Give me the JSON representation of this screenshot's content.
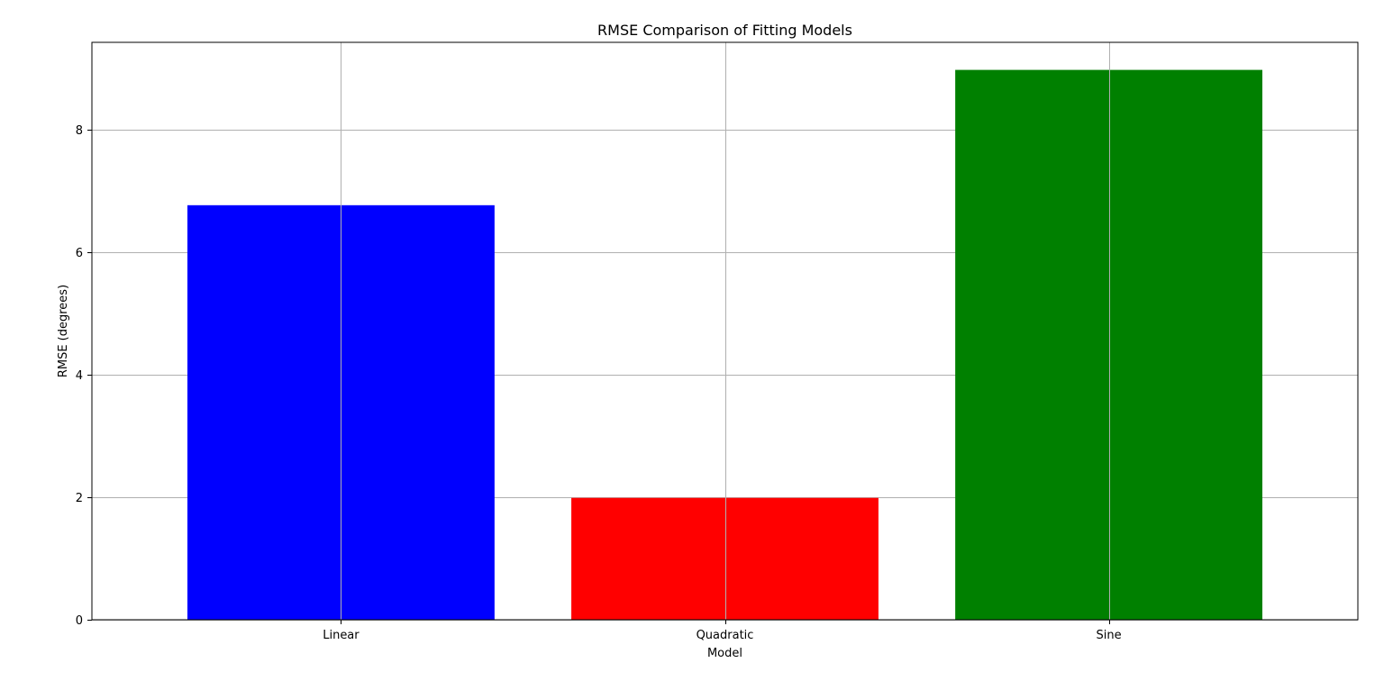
{
  "chart_data": {
    "type": "bar",
    "title": "RMSE Comparison of Fitting Models",
    "xlabel": "Model",
    "ylabel": "RMSE (degrees)",
    "categories": [
      "Linear",
      "Quadratic",
      "Sine"
    ],
    "values": [
      6.77,
      1.99,
      8.98
    ],
    "colors": [
      "#0000ff",
      "#ff0000",
      "#008000"
    ],
    "ylim": [
      0,
      9.43
    ],
    "yticks": [
      0,
      2,
      4,
      6,
      8
    ],
    "grid": true,
    "legend": "none"
  }
}
